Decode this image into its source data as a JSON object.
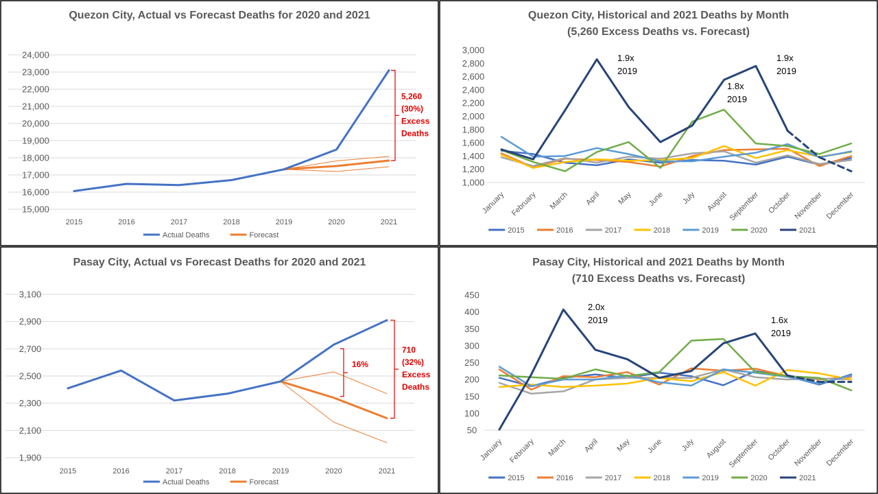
{
  "colors": {
    "actual": "#4472c4",
    "forecast": "#ed7d31",
    "grid": "#d9d9d9",
    "bracket": "#e00000",
    "y2015": "#4472c4",
    "y2016": "#ed7d31",
    "y2017": "#a5a5a5",
    "y2018": "#ffc000",
    "y2019": "#5b9bd5",
    "y2020": "#70ad47",
    "y2021": "#264478"
  },
  "chart_data": [
    {
      "id": "qc-annual",
      "type": "line",
      "title": "Quezon City, Actual vs Forecast Deaths for 2020 and 2021",
      "subtitle": "",
      "categories": [
        "2015",
        "2016",
        "2017",
        "2018",
        "2019",
        "2020",
        "2021"
      ],
      "yticks": [
        "24,000",
        "23,000",
        "22,000",
        "21,000",
        "20,000",
        "19,000",
        "18,000",
        "17,000",
        "16,000",
        "15,000"
      ],
      "ylim": [
        15000,
        24000
      ],
      "grid": true,
      "legend": "bottom",
      "series": [
        {
          "name": "Actual Deaths",
          "values": [
            16060,
            16480,
            16410,
            16700,
            17330,
            18480,
            23100
          ]
        },
        {
          "name": "Forecast",
          "values": [
            null,
            null,
            null,
            null,
            17330,
            17520,
            17840
          ]
        }
      ],
      "forecast_bounds": {
        "upper": [
          null,
          null,
          null,
          null,
          17330,
          17820,
          18080
        ],
        "lower": [
          null,
          null,
          null,
          null,
          17330,
          17200,
          17480
        ]
      },
      "annotations": [
        {
          "text": "5,260"
        },
        {
          "text": "(30%)"
        },
        {
          "text": "Excess"
        },
        {
          "text": "Deaths"
        }
      ]
    },
    {
      "id": "qc-monthly",
      "type": "line",
      "title": "Quezon City, Historical and 2021 Deaths by Month",
      "subtitle": "(5,260 Excess Deaths vs. Forecast)",
      "categories": [
        "January",
        "February",
        "March",
        "April",
        "May",
        "June",
        "July",
        "August",
        "September",
        "October",
        "November",
        "December"
      ],
      "yticks": [
        "3,000",
        "2,800",
        "2,600",
        "2,400",
        "2,200",
        "2,000",
        "1,800",
        "1,600",
        "1,400",
        "1,200",
        "1,000"
      ],
      "ylim": [
        1000,
        3000
      ],
      "grid": false,
      "legend": "bottom",
      "series": [
        {
          "name": "2015",
          "values": [
            1480,
            1430,
            1300,
            1260,
            1350,
            1300,
            1340,
            1330,
            1270,
            1390,
            1270,
            1370
          ]
        },
        {
          "name": "2016",
          "values": [
            1440,
            1230,
            1360,
            1340,
            1310,
            1240,
            1400,
            1490,
            1500,
            1510,
            1250,
            1400
          ]
        },
        {
          "name": "2017",
          "values": [
            1380,
            1250,
            1370,
            1300,
            1390,
            1360,
            1440,
            1470,
            1300,
            1410,
            1280,
            1340
          ]
        },
        {
          "name": "2018",
          "values": [
            1420,
            1220,
            1310,
            1350,
            1330,
            1340,
            1370,
            1550,
            1370,
            1490,
            1390,
            1460
          ]
        },
        {
          "name": "2019",
          "values": [
            1690,
            1390,
            1400,
            1520,
            1430,
            1320,
            1320,
            1390,
            1450,
            1580,
            1380,
            1470
          ]
        },
        {
          "name": "2020",
          "values": [
            1490,
            1310,
            1170,
            1460,
            1610,
            1220,
            1920,
            2100,
            1590,
            1550,
            1430,
            1590
          ]
        },
        {
          "name": "2021",
          "values": [
            1500,
            1350,
            2090,
            2860,
            2140,
            1610,
            1860,
            2550,
            2760,
            1780,
            1380,
            1170
          ],
          "dashed_from": 9
        }
      ],
      "annotations": [
        {
          "lines": [
            "1.9x",
            "2019"
          ]
        },
        {
          "lines": [
            "1.8x",
            "2019"
          ]
        },
        {
          "lines": [
            "1.9x",
            "2019"
          ]
        }
      ]
    },
    {
      "id": "pc-annual",
      "type": "line",
      "title": "Pasay City, Actual vs Forecast Deaths for 2020 and 2021",
      "subtitle": "",
      "categories": [
        "2015",
        "2016",
        "2017",
        "2018",
        "2019",
        "2020",
        "2021"
      ],
      "yticks": [
        "3,100",
        "2,900",
        "2,700",
        "2,500",
        "2,300",
        "2,100",
        "1,900"
      ],
      "ylim": [
        1900,
        3100
      ],
      "grid": true,
      "legend": "bottom",
      "series": [
        {
          "name": "Actual Deaths",
          "values": [
            2410,
            2540,
            2320,
            2370,
            2460,
            2730,
            2910
          ]
        },
        {
          "name": "Forecast",
          "values": [
            null,
            null,
            null,
            null,
            2460,
            2340,
            2190
          ]
        }
      ],
      "forecast_bounds": {
        "upper": [
          null,
          null,
          null,
          null,
          2460,
          2530,
          2370
        ],
        "lower": [
          null,
          null,
          null,
          null,
          2460,
          2160,
          2010
        ]
      },
      "annotations": [
        {
          "text": "16%"
        },
        {
          "text": "710"
        },
        {
          "text": "(32%)"
        },
        {
          "text": "Excess"
        },
        {
          "text": "Deaths"
        }
      ]
    },
    {
      "id": "pc-monthly",
      "type": "line",
      "title": "Pasay City, Historical and 2021 Deaths by Month",
      "subtitle": "(710 Excess Deaths vs. Forecast)",
      "categories": [
        "January",
        "February",
        "March",
        "April",
        "May",
        "June",
        "July",
        "August",
        "September",
        "October",
        "November",
        "December"
      ],
      "yticks": [
        "450",
        "400",
        "350",
        "300",
        "250",
        "200",
        "150",
        "100",
        "50"
      ],
      "ylim": [
        50,
        450
      ],
      "grid": false,
      "legend": "bottom",
      "series": [
        {
          "name": "2015",
          "values": [
            205,
            180,
            205,
            215,
            205,
            220,
            210,
            183,
            225,
            210,
            185,
            215
          ]
        },
        {
          "name": "2016",
          "values": [
            230,
            170,
            210,
            207,
            222,
            185,
            233,
            226,
            232,
            210,
            200,
            208
          ]
        },
        {
          "name": "2017",
          "values": [
            190,
            158,
            165,
            200,
            205,
            205,
            205,
            230,
            207,
            200,
            203,
            200
          ]
        },
        {
          "name": "2018",
          "values": [
            178,
            185,
            178,
            182,
            188,
            205,
            195,
            222,
            182,
            228,
            218,
            200
          ]
        },
        {
          "name": "2019",
          "values": [
            238,
            180,
            200,
            200,
            212,
            192,
            182,
            230,
            220,
            208,
            188,
            212
          ]
        },
        {
          "name": "2020",
          "values": [
            212,
            207,
            202,
            230,
            210,
            222,
            315,
            320,
            222,
            210,
            205,
            168
          ]
        },
        {
          "name": "2021",
          "values": [
            52,
            215,
            407,
            288,
            260,
            205,
            225,
            307,
            336,
            212,
            193,
            193
          ],
          "dashed_from": 9
        }
      ],
      "annotations": [
        {
          "lines": [
            "2.0x",
            "2019"
          ]
        },
        {
          "lines": [
            "1.6x",
            "2019"
          ]
        }
      ]
    }
  ]
}
